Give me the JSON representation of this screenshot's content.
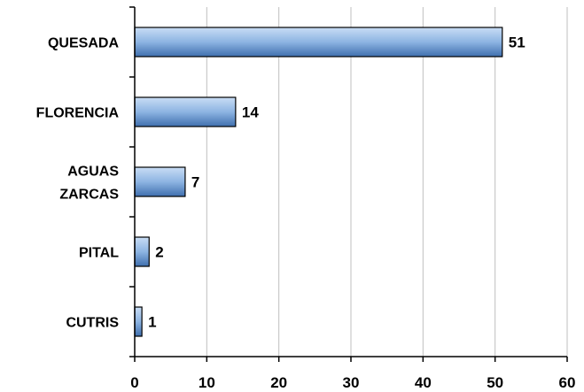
{
  "chart_data": {
    "type": "bar",
    "orientation": "horizontal",
    "categories": [
      "QUESADA",
      "FLORENCIA",
      "AGUAS ZARCAS",
      "PITAL",
      "CUTRIS"
    ],
    "category_lines": [
      [
        "QUESADA"
      ],
      [
        "FLORENCIA"
      ],
      [
        "AGUAS",
        "ZARCAS"
      ],
      [
        "PITAL"
      ],
      [
        "CUTRIS"
      ]
    ],
    "values": [
      51,
      14,
      7,
      2,
      1
    ],
    "xlim": [
      0,
      60
    ],
    "xticks": [
      0,
      10,
      20,
      30,
      40,
      50,
      60
    ],
    "grid": "vertical",
    "legend": "none",
    "title": "",
    "xlabel": "",
    "ylabel": "",
    "colors": {
      "bar_light": "#c9ddf5",
      "bar_mid": "#8db4e2",
      "bar_dark": "#3f6fae",
      "bar_stroke": "#000000",
      "grid": "#bfbfbf",
      "axis": "#000000"
    }
  }
}
